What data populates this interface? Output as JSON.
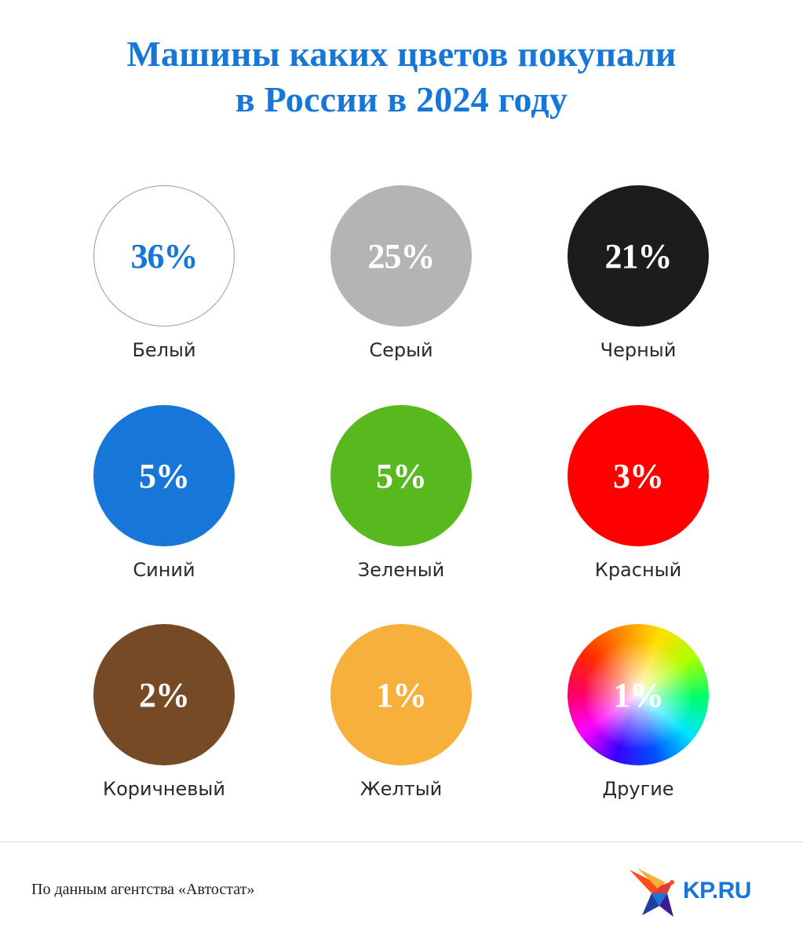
{
  "title": {
    "line1": "Машины каких цветов покупали",
    "line2": "в России в 2024 году"
  },
  "chart_data": {
    "type": "proportional-circles",
    "unit": "%",
    "categories": [
      "Белый",
      "Серый",
      "Черный",
      "Синий",
      "Зеленый",
      "Красный",
      "Коричневый",
      "Желтый",
      "Другие"
    ],
    "values": [
      36,
      25,
      21,
      5,
      5,
      3,
      2,
      1,
      1
    ],
    "value_labels": [
      "36%",
      "25%",
      "21%",
      "5%",
      "5%",
      "3%",
      "2%",
      "1%",
      "1%"
    ],
    "colors": [
      "#ffffff",
      "#b4b4b4",
      "#1c1c1c",
      "#1677d8",
      "#57b91d",
      "#ff0000",
      "#754a25",
      "#f7b03c",
      "rainbow"
    ],
    "text_colors": [
      "#1677d8",
      "#ffffff",
      "#ffffff",
      "#ffffff",
      "#ffffff",
      "#ffffff",
      "#ffffff",
      "#ffffff",
      "#ffffff"
    ]
  },
  "footer": {
    "source": "По данным агентства «Автостат»",
    "logo_text": "KP.RU",
    "logo_icon": "swallow-bird-icon"
  },
  "colors": {
    "accent": "#1677d8"
  }
}
